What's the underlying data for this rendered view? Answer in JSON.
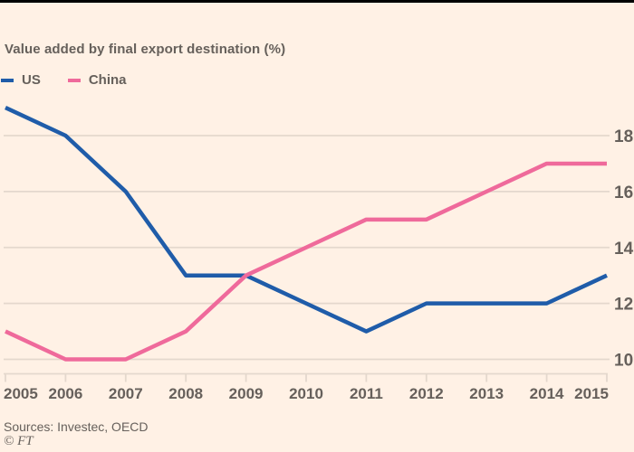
{
  "header": {
    "subtitle": "Value added by final export destination (%)"
  },
  "legend": {
    "items": [
      {
        "label": "US",
        "color": "#1F5CA9"
      },
      {
        "label": "China",
        "color": "#EF6A9B"
      }
    ]
  },
  "footer": {
    "sources": "Sources: Investec, OECD",
    "copyright": "© FT"
  },
  "colors": {
    "background": "#FFF1E5",
    "top_rule": "#000000",
    "text": "#66605B",
    "axis_text": "#66605B",
    "gridline": "#E4D8CD",
    "us_line": "#1F5CA9",
    "china_line": "#EF6A9B"
  },
  "chart_data": {
    "type": "line",
    "title": "",
    "subtitle": "Value added by final export destination (%)",
    "xlabel": "",
    "ylabel": "",
    "unit": "%",
    "x": [
      2005,
      2006,
      2007,
      2008,
      2009,
      2010,
      2011,
      2012,
      2013,
      2014,
      2015
    ],
    "series": [
      {
        "name": "US",
        "color": "#1F5CA9",
        "values": [
          19,
          18,
          16,
          13,
          13,
          12,
          11,
          12,
          12,
          12,
          13
        ]
      },
      {
        "name": "China",
        "color": "#EF6A9B",
        "values": [
          11,
          10,
          10,
          11,
          13,
          14,
          15,
          15,
          16,
          17,
          17
        ]
      }
    ],
    "y_ticks": [
      10,
      12,
      14,
      16,
      18
    ],
    "ylim": [
      9.5,
      19.5
    ],
    "y_axis_side": "right",
    "grid": "horizontal",
    "legend_position": "top-left"
  }
}
